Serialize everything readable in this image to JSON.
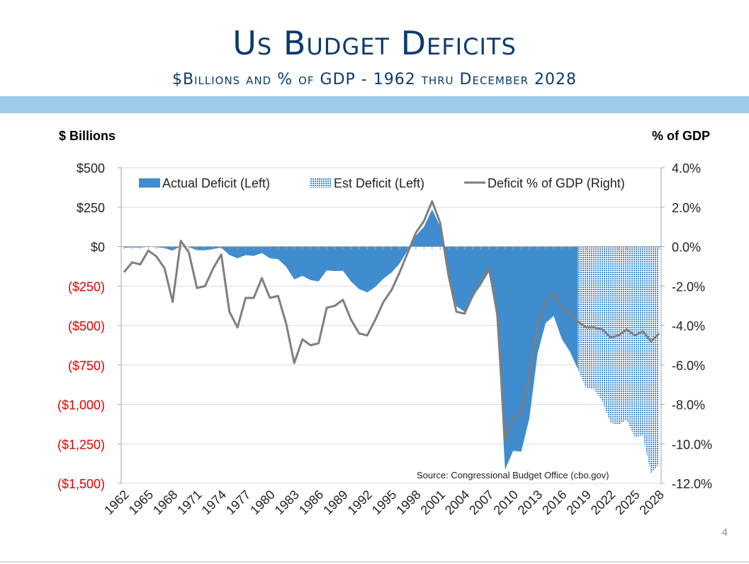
{
  "slide": {
    "title": "Us Budget Deficits",
    "subtitle": "$Billions and % of GDP - 1962 thru December 2028",
    "page_number": "4",
    "band_color": "#9ccbec",
    "title_color": "#0d3a6e"
  },
  "chart_data": {
    "type": "area",
    "left_axis_title": "$ Billions",
    "right_axis_title": "% of GDP",
    "left_ylim": [
      -1500,
      500
    ],
    "right_ylim": [
      -12.0,
      4.0
    ],
    "left_ticks": [
      "$500",
      "$250",
      "$0",
      "($250)",
      "($500)",
      "($750)",
      "($1,000)",
      "($1,250)",
      "($1,500)"
    ],
    "right_ticks": [
      "4.0%",
      "2.0%",
      "0.0%",
      "-2.0%",
      "-4.0%",
      "-6.0%",
      "-8.0%",
      "-10.0%",
      "-12.0%"
    ],
    "x_tick_labels": [
      "1962",
      "1965",
      "1968",
      "1971",
      "1974",
      "1977",
      "1980",
      "1983",
      "1986",
      "1989",
      "1992",
      "1995",
      "1998",
      "2001",
      "2004",
      "2007",
      "2010",
      "2013",
      "2016",
      "2019",
      "2022",
      "2025",
      "2028"
    ],
    "grid": true,
    "legend_position": "top",
    "source": "Source:  Congressional Budget Office (cbo.gov)",
    "colors": {
      "actual": "#3f8ccf",
      "estimate": "#3f8ccf",
      "pct_line": "#7f7f7f",
      "grid": "#d9d9d9",
      "negative_tick": "#e00000"
    },
    "series": [
      {
        "name": "Actual Deficit (Left)",
        "axis": "left",
        "style": "area",
        "x": [
          1962,
          1963,
          1964,
          1965,
          1966,
          1967,
          1968,
          1969,
          1970,
          1971,
          1972,
          1973,
          1974,
          1975,
          1976,
          1977,
          1978,
          1979,
          1980,
          1981,
          1982,
          1983,
          1984,
          1985,
          1986,
          1987,
          1988,
          1989,
          1990,
          1991,
          1992,
          1993,
          1994,
          1995,
          1996,
          1997,
          1998,
          1999,
          2000,
          2001,
          2002,
          2003,
          2004,
          2005,
          2006,
          2007,
          2008,
          2009,
          2010,
          2011,
          2012,
          2013,
          2014,
          2015,
          2016,
          2017,
          2018
        ],
        "values": [
          -7,
          -5,
          -6,
          -1,
          -4,
          -9,
          -25,
          3,
          -3,
          -23,
          -23,
          -15,
          -6,
          -53,
          -74,
          -54,
          -59,
          -41,
          -74,
          -79,
          -128,
          -208,
          -185,
          -212,
          -221,
          -150,
          -155,
          -153,
          -221,
          -269,
          -290,
          -255,
          -203,
          -164,
          -107,
          -22,
          69,
          126,
          236,
          128,
          -158,
          -378,
          -413,
          -318,
          -248,
          -161,
          -459,
          -1413,
          -1294,
          -1300,
          -1087,
          -680,
          -485,
          -439,
          -585,
          -665,
          -779
        ]
      },
      {
        "name": "Est Deficit (Left)",
        "axis": "left",
        "style": "hatched-area",
        "x": [
          2018,
          2019,
          2020,
          2021,
          2022,
          2023,
          2024,
          2025,
          2026,
          2027,
          2028
        ],
        "values": [
          -779,
          -897,
          -903,
          -981,
          -1116,
          -1129,
          -1098,
          -1207,
          -1196,
          -1438,
          -1379
        ]
      },
      {
        "name": "Deficit % of GDP (Right)",
        "axis": "right",
        "style": "line",
        "x": [
          1962,
          1963,
          1964,
          1965,
          1966,
          1967,
          1968,
          1969,
          1970,
          1971,
          1972,
          1973,
          1974,
          1975,
          1976,
          1977,
          1978,
          1979,
          1980,
          1981,
          1982,
          1983,
          1984,
          1985,
          1986,
          1987,
          1988,
          1989,
          1990,
          1991,
          1992,
          1993,
          1994,
          1995,
          1996,
          1997,
          1998,
          1999,
          2000,
          2001,
          2002,
          2003,
          2004,
          2005,
          2006,
          2007,
          2008,
          2009,
          2010,
          2011,
          2012,
          2013,
          2014,
          2015,
          2016,
          2017,
          2018,
          2019,
          2020,
          2021,
          2022,
          2023,
          2024,
          2025,
          2026,
          2027,
          2028
        ],
        "values": [
          -1.3,
          -0.8,
          -0.9,
          -0.2,
          -0.5,
          -1.1,
          -2.8,
          0.3,
          -0.3,
          -2.1,
          -2.0,
          -1.1,
          -0.4,
          -3.3,
          -4.1,
          -2.6,
          -2.6,
          -1.6,
          -2.6,
          -2.5,
          -3.9,
          -5.9,
          -4.7,
          -5.0,
          -4.9,
          -3.1,
          -3.0,
          -2.7,
          -3.7,
          -4.4,
          -4.5,
          -3.7,
          -2.8,
          -2.2,
          -1.3,
          -0.3,
          0.7,
          1.3,
          2.3,
          1.2,
          -1.4,
          -3.3,
          -3.4,
          -2.5,
          -1.8,
          -1.1,
          -3.2,
          -9.8,
          -8.7,
          -8.4,
          -6.6,
          -4.0,
          -2.8,
          -2.4,
          -3.1,
          -3.4,
          -3.8,
          -4.1,
          -4.1,
          -4.2,
          -4.6,
          -4.5,
          -4.2,
          -4.5,
          -4.3,
          -4.8,
          -4.4
        ]
      }
    ]
  }
}
